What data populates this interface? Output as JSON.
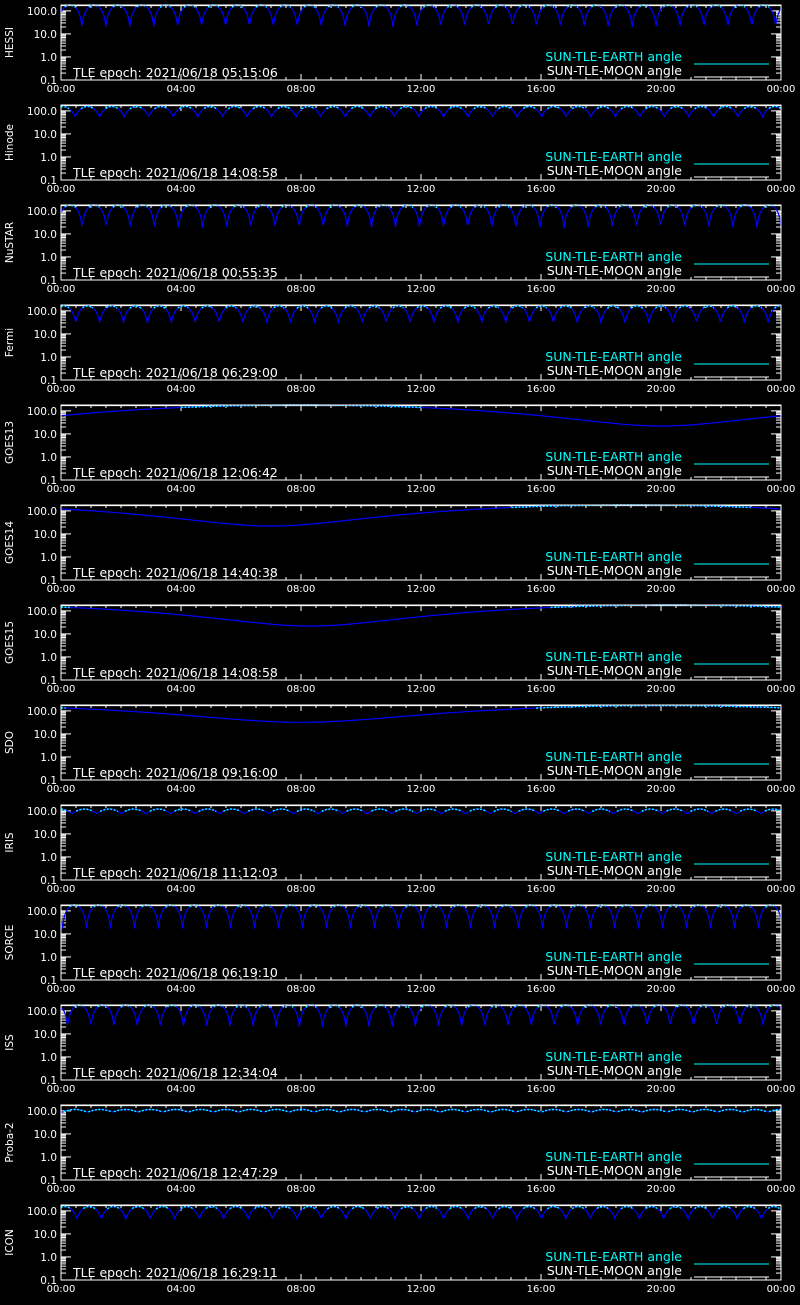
{
  "colors": {
    "background": "#000000",
    "axes": "#ffffff",
    "earth": "#00ffff",
    "earth_dip": "#0000ff",
    "moon": "#ffffff"
  },
  "x_tick_labels": [
    "00:00",
    "04:00",
    "08:00",
    "12:00",
    "16:00",
    "20:00",
    "00:00"
  ],
  "y_tick_labels": [
    "100.0",
    "10.0",
    "1.0",
    "0.1"
  ],
  "legend": {
    "earth": "SUN-TLE-EARTH angle",
    "moon": "SUN-TLE-MOON angle"
  },
  "chart_data": [
    {
      "type": "line",
      "panel": "HESSI",
      "epoch_label": "TLE epoch: 2021/06/18 05:15:06",
      "xlim": [
        "00:00",
        "24:00"
      ],
      "ylim": [
        0.1,
        180
      ],
      "y_scale": "log",
      "series": [
        {
          "name": "SUN-TLE-EARTH angle",
          "pattern": "orbit",
          "period_h": 1.595,
          "phase_h": 0.1,
          "max_deg": 180,
          "min_deg": 20
        },
        {
          "name": "SUN-TLE-MOON angle",
          "pattern": "constant",
          "value_deg": 170
        }
      ]
    },
    {
      "type": "line",
      "panel": "Hinode",
      "epoch_label": "TLE epoch: 2021/06/18 14:08:58",
      "xlim": [
        "00:00",
        "24:00"
      ],
      "ylim": [
        0.1,
        180
      ],
      "y_scale": "log",
      "series": [
        {
          "name": "SUN-TLE-EARTH angle",
          "pattern": "orbit",
          "period_h": 1.637,
          "phase_h": 0.35,
          "max_deg": 155,
          "min_deg": 55
        },
        {
          "name": "SUN-TLE-MOON angle",
          "pattern": "constant",
          "value_deg": 170
        }
      ]
    },
    {
      "type": "line",
      "panel": "NuSTAR",
      "epoch_label": "TLE epoch: 2021/06/18 00:55:35",
      "xlim": [
        "00:00",
        "24:00"
      ],
      "ylim": [
        0.1,
        180
      ],
      "y_scale": "log",
      "series": [
        {
          "name": "SUN-TLE-EARTH angle",
          "pattern": "orbit",
          "period_h": 1.607,
          "phase_h": 0.1,
          "max_deg": 180,
          "min_deg": 18
        },
        {
          "name": "SUN-TLE-MOON angle",
          "pattern": "constant",
          "value_deg": 170
        }
      ]
    },
    {
      "type": "line",
      "panel": "Fermi",
      "epoch_label": "TLE epoch: 2021/06/18 06:29:00",
      "xlim": [
        "00:00",
        "24:00"
      ],
      "ylim": [
        0.1,
        180
      ],
      "y_scale": "log",
      "series": [
        {
          "name": "SUN-TLE-EARTH angle",
          "pattern": "orbit",
          "period_h": 1.592,
          "phase_h": 1.1,
          "max_deg": 165,
          "min_deg": 30
        },
        {
          "name": "SUN-TLE-MOON angle",
          "pattern": "constant",
          "value_deg": 170
        }
      ]
    },
    {
      "type": "line",
      "panel": "GOES13",
      "epoch_label": "TLE epoch: 2021/06/18 12:06:42",
      "xlim": [
        "00:00",
        "24:00"
      ],
      "ylim": [
        0.1,
        180
      ],
      "y_scale": "log",
      "series": [
        {
          "name": "SUN-TLE-EARTH angle",
          "pattern": "geo",
          "min_time_h": 20.0,
          "max_deg": 180,
          "min_deg": 22
        },
        {
          "name": "SUN-TLE-MOON angle",
          "pattern": "constant",
          "value_deg": 170
        }
      ]
    },
    {
      "type": "line",
      "panel": "GOES14",
      "epoch_label": "TLE epoch: 2021/06/18 14:40:38",
      "xlim": [
        "00:00",
        "24:00"
      ],
      "ylim": [
        0.1,
        180
      ],
      "y_scale": "log",
      "series": [
        {
          "name": "SUN-TLE-EARTH angle",
          "pattern": "geo",
          "min_time_h": 7.0,
          "max_deg": 180,
          "min_deg": 22
        },
        {
          "name": "SUN-TLE-MOON angle",
          "pattern": "constant",
          "value_deg": 170
        }
      ]
    },
    {
      "type": "line",
      "panel": "GOES15",
      "epoch_label": "TLE epoch: 2021/06/18 14:08:58",
      "xlim": [
        "00:00",
        "24:00"
      ],
      "ylim": [
        0.1,
        180
      ],
      "y_scale": "log",
      "series": [
        {
          "name": "SUN-TLE-EARTH angle",
          "pattern": "geo",
          "min_time_h": 8.3,
          "max_deg": 180,
          "min_deg": 22
        },
        {
          "name": "SUN-TLE-MOON angle",
          "pattern": "constant",
          "value_deg": 170
        }
      ]
    },
    {
      "type": "line",
      "panel": "SDO",
      "epoch_label": "TLE epoch: 2021/06/18 09:16:00",
      "xlim": [
        "00:00",
        "24:00"
      ],
      "ylim": [
        0.1,
        180
      ],
      "y_scale": "log",
      "series": [
        {
          "name": "SUN-TLE-EARTH angle",
          "pattern": "geo",
          "min_time_h": 8.0,
          "max_deg": 170,
          "min_deg": 32
        },
        {
          "name": "SUN-TLE-MOON angle",
          "pattern": "constant",
          "value_deg": 170
        }
      ]
    },
    {
      "type": "line",
      "panel": "IRIS",
      "epoch_label": "TLE epoch: 2021/06/18 11:12:03",
      "xlim": [
        "00:00",
        "24:00"
      ],
      "ylim": [
        0.1,
        180
      ],
      "y_scale": "log",
      "series": [
        {
          "name": "SUN-TLE-EARTH angle",
          "pattern": "orbit",
          "period_h": 1.64,
          "phase_h": 0.45,
          "max_deg": 120,
          "min_deg": 75
        },
        {
          "name": "SUN-TLE-MOON angle",
          "pattern": "constant",
          "value_deg": 170
        }
      ]
    },
    {
      "type": "line",
      "panel": "SORCE",
      "epoch_label": "TLE epoch: 2021/06/18 06:19:10",
      "xlim": [
        "00:00",
        "24:00"
      ],
      "ylim": [
        0.1,
        180
      ],
      "y_scale": "log",
      "series": [
        {
          "name": "SUN-TLE-EARTH angle",
          "pattern": "orbit",
          "period_h": 1.6,
          "phase_h": 0.75,
          "max_deg": 180,
          "min_deg": 15
        },
        {
          "name": "SUN-TLE-MOON angle",
          "pattern": "constant",
          "value_deg": 170
        }
      ]
    },
    {
      "type": "line",
      "panel": "ISS",
      "epoch_label": "TLE epoch: 2021/06/18 12:34:04",
      "xlim": [
        "00:00",
        "24:00"
      ],
      "ylim": [
        0.1,
        180
      ],
      "y_scale": "log",
      "series": [
        {
          "name": "SUN-TLE-EARTH angle",
          "pattern": "orbit",
          "period_h": 1.545,
          "phase_h": 0.55,
          "max_deg": 180,
          "min_deg": 20
        },
        {
          "name": "SUN-TLE-MOON angle",
          "pattern": "constant",
          "value_deg": 170
        }
      ]
    },
    {
      "type": "line",
      "panel": "Proba-2",
      "epoch_label": "TLE epoch: 2021/06/18 12:47:29",
      "xlim": [
        "00:00",
        "24:00"
      ],
      "ylim": [
        0.1,
        180
      ],
      "y_scale": "log",
      "series": [
        {
          "name": "SUN-TLE-EARTH angle",
          "pattern": "orbit",
          "period_h": 1.68,
          "phase_h": 0.8,
          "max_deg": 115,
          "min_deg": 88
        },
        {
          "name": "SUN-TLE-MOON angle",
          "pattern": "constant",
          "value_deg": 170
        }
      ]
    },
    {
      "type": "line",
      "panel": "ICON",
      "epoch_label": "TLE epoch: 2021/06/18 16:29:11",
      "xlim": [
        "00:00",
        "24:00"
      ],
      "ylim": [
        0.1,
        180
      ],
      "y_scale": "log",
      "series": [
        {
          "name": "SUN-TLE-EARTH angle",
          "pattern": "orbit",
          "period_h": 1.63,
          "phase_h": 1.1,
          "max_deg": 155,
          "min_deg": 45
        },
        {
          "name": "SUN-TLE-MOON angle",
          "pattern": "constant",
          "value_deg": 170
        }
      ]
    }
  ]
}
